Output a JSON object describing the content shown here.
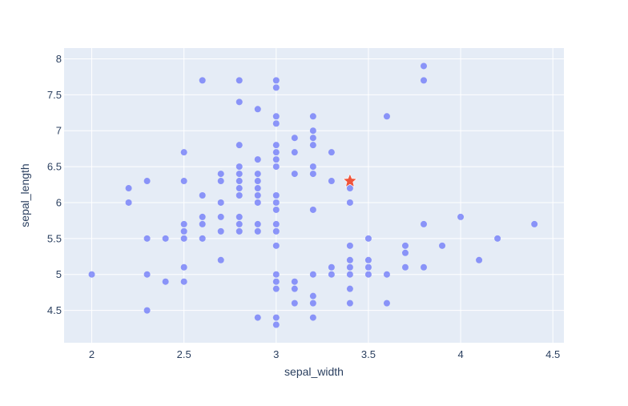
{
  "chart_data": {
    "type": "scatter",
    "xlabel": "sepal_width",
    "ylabel": "sepal_length",
    "xlim": [
      1.85,
      4.56
    ],
    "ylim": [
      4.05,
      8.15
    ],
    "xticks": [
      2,
      2.5,
      3,
      3.5,
      4,
      4.5
    ],
    "yticks": [
      4.5,
      5,
      5.5,
      6,
      6.5,
      7,
      7.5,
      8
    ],
    "colors": {
      "points": "#636efa",
      "highlight": "#ef553b",
      "plot_bg": "#e5ecf6",
      "grid": "#ffffff",
      "text": "#2a3f5f"
    },
    "series": [
      {
        "marker": "circle",
        "points": [
          [
            2.0,
            5.0
          ],
          [
            2.2,
            6.2
          ],
          [
            2.2,
            6.0
          ],
          [
            2.3,
            6.3
          ],
          [
            2.3,
            5.5
          ],
          [
            2.3,
            5.0
          ],
          [
            2.3,
            4.5
          ],
          [
            2.4,
            5.5
          ],
          [
            2.4,
            4.9
          ],
          [
            2.5,
            6.7
          ],
          [
            2.5,
            6.3
          ],
          [
            2.5,
            5.7
          ],
          [
            2.5,
            5.6
          ],
          [
            2.5,
            5.5
          ],
          [
            2.5,
            5.1
          ],
          [
            2.5,
            4.9
          ],
          [
            2.6,
            7.7
          ],
          [
            2.6,
            6.1
          ],
          [
            2.6,
            5.8
          ],
          [
            2.6,
            5.7
          ],
          [
            2.6,
            5.5
          ],
          [
            2.7,
            6.4
          ],
          [
            2.7,
            6.3
          ],
          [
            2.7,
            6.0
          ],
          [
            2.7,
            5.8
          ],
          [
            2.7,
            5.6
          ],
          [
            2.7,
            5.2
          ],
          [
            2.8,
            7.7
          ],
          [
            2.8,
            7.4
          ],
          [
            2.8,
            6.8
          ],
          [
            2.8,
            6.5
          ],
          [
            2.8,
            6.4
          ],
          [
            2.8,
            6.3
          ],
          [
            2.8,
            6.2
          ],
          [
            2.8,
            6.1
          ],
          [
            2.8,
            5.8
          ],
          [
            2.8,
            5.7
          ],
          [
            2.8,
            5.6
          ],
          [
            2.9,
            7.3
          ],
          [
            2.9,
            6.6
          ],
          [
            2.9,
            6.4
          ],
          [
            2.9,
            6.3
          ],
          [
            2.9,
            6.2
          ],
          [
            2.9,
            6.1
          ],
          [
            2.9,
            6.0
          ],
          [
            2.9,
            5.7
          ],
          [
            2.9,
            5.6
          ],
          [
            2.9,
            4.4
          ],
          [
            3.0,
            7.7
          ],
          [
            3.0,
            7.6
          ],
          [
            3.0,
            7.2
          ],
          [
            3.0,
            7.1
          ],
          [
            3.0,
            6.8
          ],
          [
            3.0,
            6.7
          ],
          [
            3.0,
            6.6
          ],
          [
            3.0,
            6.5
          ],
          [
            3.0,
            6.1
          ],
          [
            3.0,
            6.0
          ],
          [
            3.0,
            5.9
          ],
          [
            3.0,
            5.7
          ],
          [
            3.0,
            5.6
          ],
          [
            3.0,
            5.4
          ],
          [
            3.0,
            5.0
          ],
          [
            3.0,
            4.9
          ],
          [
            3.0,
            4.8
          ],
          [
            3.0,
            4.4
          ],
          [
            3.0,
            4.3
          ],
          [
            3.1,
            6.9
          ],
          [
            3.1,
            6.7
          ],
          [
            3.1,
            6.4
          ],
          [
            3.1,
            4.9
          ],
          [
            3.1,
            4.8
          ],
          [
            3.1,
            4.6
          ],
          [
            3.2,
            7.2
          ],
          [
            3.2,
            7.0
          ],
          [
            3.2,
            6.9
          ],
          [
            3.2,
            6.8
          ],
          [
            3.2,
            6.5
          ],
          [
            3.2,
            6.4
          ],
          [
            3.2,
            5.9
          ],
          [
            3.2,
            5.0
          ],
          [
            3.2,
            4.7
          ],
          [
            3.2,
            4.6
          ],
          [
            3.2,
            4.4
          ],
          [
            3.3,
            6.7
          ],
          [
            3.3,
            6.3
          ],
          [
            3.3,
            5.1
          ],
          [
            3.3,
            5.0
          ],
          [
            3.4,
            6.2
          ],
          [
            3.4,
            6.0
          ],
          [
            3.4,
            5.4
          ],
          [
            3.4,
            5.2
          ],
          [
            3.4,
            5.1
          ],
          [
            3.4,
            5.0
          ],
          [
            3.4,
            4.8
          ],
          [
            3.4,
            4.6
          ],
          [
            3.5,
            5.5
          ],
          [
            3.5,
            5.2
          ],
          [
            3.5,
            5.1
          ],
          [
            3.5,
            5.0
          ],
          [
            3.6,
            7.2
          ],
          [
            3.6,
            5.0
          ],
          [
            3.6,
            4.6
          ],
          [
            3.7,
            5.4
          ],
          [
            3.7,
            5.3
          ],
          [
            3.7,
            5.1
          ],
          [
            3.8,
            7.9
          ],
          [
            3.8,
            7.7
          ],
          [
            3.8,
            5.7
          ],
          [
            3.8,
            5.1
          ],
          [
            3.9,
            5.4
          ],
          [
            4.0,
            5.8
          ],
          [
            4.1,
            5.2
          ],
          [
            4.2,
            5.5
          ],
          [
            4.4,
            5.7
          ]
        ]
      },
      {
        "marker": "star",
        "points": [
          [
            3.4,
            6.3
          ]
        ]
      }
    ]
  }
}
